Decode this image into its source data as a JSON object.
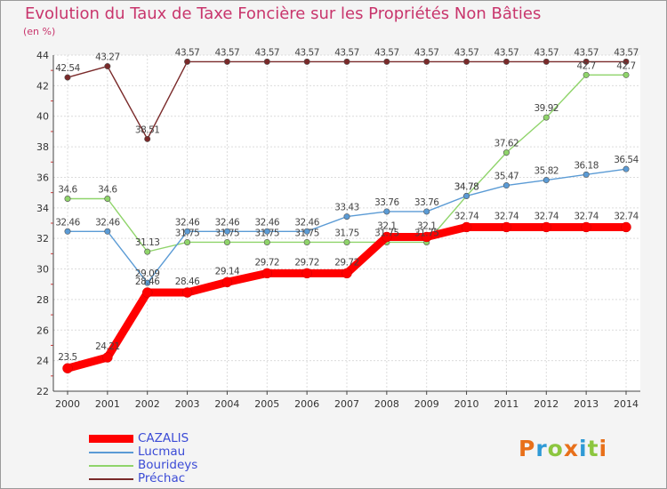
{
  "chart_data": {
    "type": "line",
    "title": "Evolution du Taux de Taxe Foncière sur les Propriétés Non Bâties",
    "ylabel": "(en %)",
    "xlabel": "",
    "x": [
      "2000",
      "2001",
      "2002",
      "2003",
      "2004",
      "2005",
      "2006",
      "2007",
      "2008",
      "2009",
      "2010",
      "2011",
      "2012",
      "2013",
      "2014"
    ],
    "ylim": [
      22,
      44
    ],
    "yticks": [
      "22",
      "24",
      "26",
      "28",
      "30",
      "32",
      "34",
      "36",
      "38",
      "40",
      "42",
      "44"
    ],
    "grid": true,
    "series": [
      {
        "name": "CAZALIS",
        "color": "#ff0000",
        "values": [
          23.5,
          24.21,
          28.46,
          28.46,
          29.14,
          29.72,
          29.72,
          29.72,
          32.1,
          32.1,
          32.74,
          32.74,
          32.74,
          32.74,
          32.74
        ],
        "labels": [
          "23.5",
          "24.21",
          "28.46",
          "28.46",
          "29.14",
          "29.72",
          "29.72",
          "29.72",
          "32.1",
          "32.1",
          "32.74",
          "32.74",
          "32.74",
          "32.74",
          "32.74"
        ]
      },
      {
        "name": "Lucmau",
        "color": "#5b9bd5",
        "values": [
          32.46,
          32.46,
          29.09,
          32.46,
          32.46,
          32.46,
          32.46,
          33.43,
          33.76,
          33.76,
          34.78,
          35.47,
          35.82,
          36.18,
          36.54
        ],
        "labels": [
          "32.46",
          "32.46",
          "29.09",
          "32.46",
          "32.46",
          "32.46",
          "32.46",
          "33.43",
          "33.76",
          "33.76",
          "34.78",
          "35.47",
          "35.82",
          "36.18",
          "36.54"
        ]
      },
      {
        "name": "Bourideys",
        "color": "#8fd46a",
        "values": [
          34.6,
          34.6,
          31.13,
          31.75,
          31.75,
          31.75,
          31.75,
          31.75,
          31.75,
          31.75,
          34.78,
          37.62,
          39.92,
          42.7,
          42.7
        ],
        "labels": [
          "34.6",
          "34.6",
          "31.13",
          "31.75",
          "31.75",
          "31.75",
          "31.75",
          "31.75",
          "31.75",
          "31.75",
          "34.78",
          "37.62",
          "39.92",
          "42.7",
          "42.7"
        ]
      },
      {
        "name": "Préchac",
        "color": "#7a2a2a",
        "values": [
          42.54,
          43.27,
          38.51,
          43.57,
          43.57,
          43.57,
          43.57,
          43.57,
          43.57,
          43.57,
          43.57,
          43.57,
          43.57,
          43.57,
          43.57
        ],
        "labels": [
          "42.54",
          "43.27",
          "38.51",
          "43.57",
          "43.57",
          "43.57",
          "43.57",
          "43.57",
          "43.57",
          "43.57",
          "43.57",
          "43.57",
          "43.57",
          "43.57",
          "43.57"
        ]
      }
    ],
    "legend": "bottom-left"
  },
  "brand": {
    "logo_text": "Proxiti",
    "colors": [
      "#e8701a",
      "#2f9ad6",
      "#8cc63f",
      "#e8701a",
      "#2f9ad6",
      "#8cc63f",
      "#e8701a"
    ]
  }
}
